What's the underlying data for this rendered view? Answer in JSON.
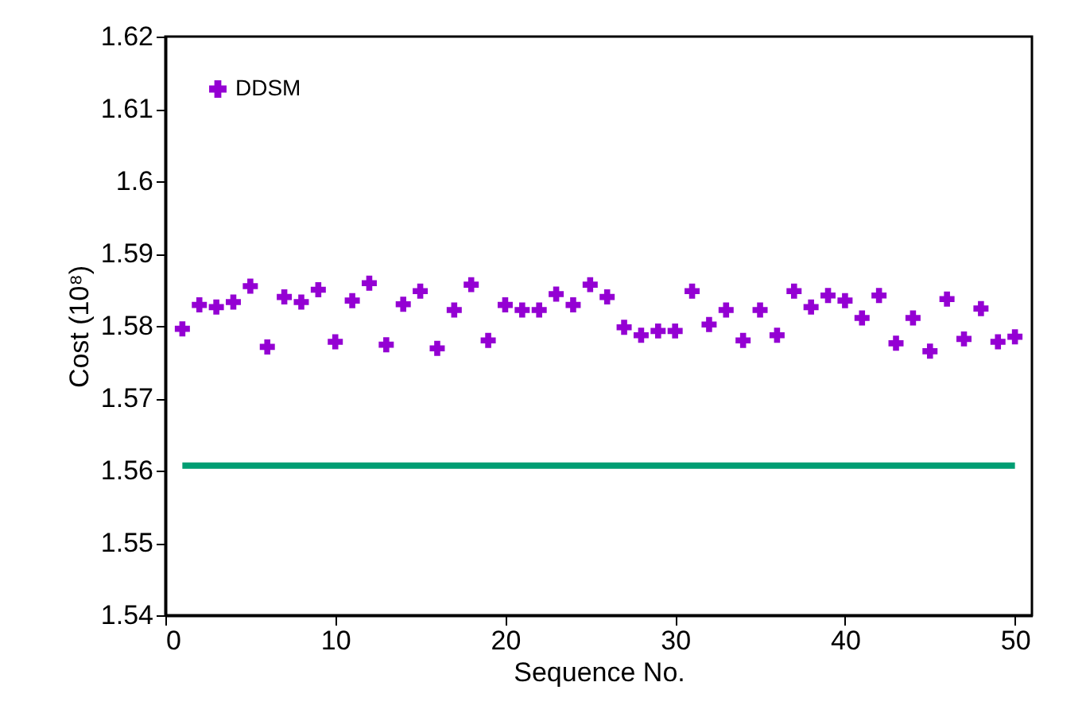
{
  "chart_data": {
    "type": "scatter",
    "xlabel": "Sequence No.",
    "ylabel": "Cost (10⁸)",
    "xlim": [
      0,
      51
    ],
    "xticks": [
      0,
      10,
      20,
      30,
      40,
      50
    ],
    "ylim": [
      1.54,
      1.62
    ],
    "yticks": [
      1.54,
      1.55,
      1.56,
      1.57,
      1.58,
      1.59,
      1.6,
      1.61,
      1.62
    ],
    "grid": false,
    "legend": "top left",
    "marker": "cross",
    "series": [
      {
        "name": "DDSM",
        "color": "#9400d3",
        "x": [
          1,
          2,
          3,
          4,
          5,
          6,
          7,
          8,
          9,
          10,
          11,
          12,
          13,
          14,
          15,
          16,
          17,
          18,
          19,
          20,
          21,
          22,
          23,
          24,
          25,
          26,
          27,
          28,
          29,
          30,
          31,
          32,
          33,
          34,
          35,
          36,
          37,
          38,
          39,
          40,
          41,
          42,
          43,
          44,
          45,
          46,
          47,
          48,
          49,
          50
        ],
        "values": [
          1.5796,
          1.5829,
          1.5826,
          1.5833,
          1.5855,
          1.5771,
          1.584,
          1.5833,
          1.585,
          1.5778,
          1.5835,
          1.5859,
          1.5774,
          1.583,
          1.5848,
          1.5769,
          1.5822,
          1.5857,
          1.578,
          1.5829,
          1.5822,
          1.5822,
          1.5844,
          1.5829,
          1.5857,
          1.584,
          1.5798,
          1.5787,
          1.5793,
          1.5793,
          1.5848,
          1.5802,
          1.5822,
          1.578,
          1.5822,
          1.5787,
          1.5848,
          1.5826,
          1.5842,
          1.5835,
          1.5811,
          1.5842,
          1.5776,
          1.5811,
          1.5765,
          1.5837,
          1.5782,
          1.5824,
          1.5778,
          1.5785
        ]
      },
      {
        "type": "line",
        "marker": "none",
        "color": "#009e73",
        "x": [
          1,
          50
        ],
        "values": [
          1.5607,
          1.5607
        ]
      }
    ]
  }
}
